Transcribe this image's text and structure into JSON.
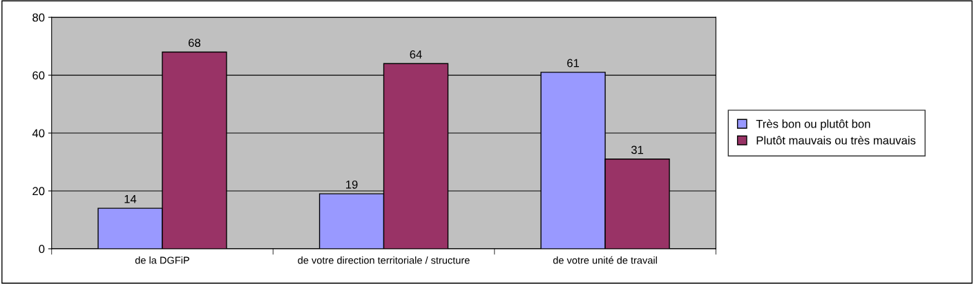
{
  "chart_data": {
    "type": "bar",
    "categories": [
      "de la DGFiP",
      "de votre direction territoriale / structure",
      "de votre unité de travail"
    ],
    "series": [
      {
        "name": "Très bon ou plutôt bon",
        "color": "#9999ff",
        "values": [
          14,
          19,
          61
        ]
      },
      {
        "name": "Plutôt mauvais ou très mauvais",
        "color": "#993366",
        "values": [
          68,
          64,
          31
        ]
      }
    ],
    "ylim": [
      0,
      80
    ],
    "yticks": [
      0,
      20,
      40,
      60,
      80
    ],
    "grid": "y",
    "legend": "right",
    "data_labels": true
  }
}
